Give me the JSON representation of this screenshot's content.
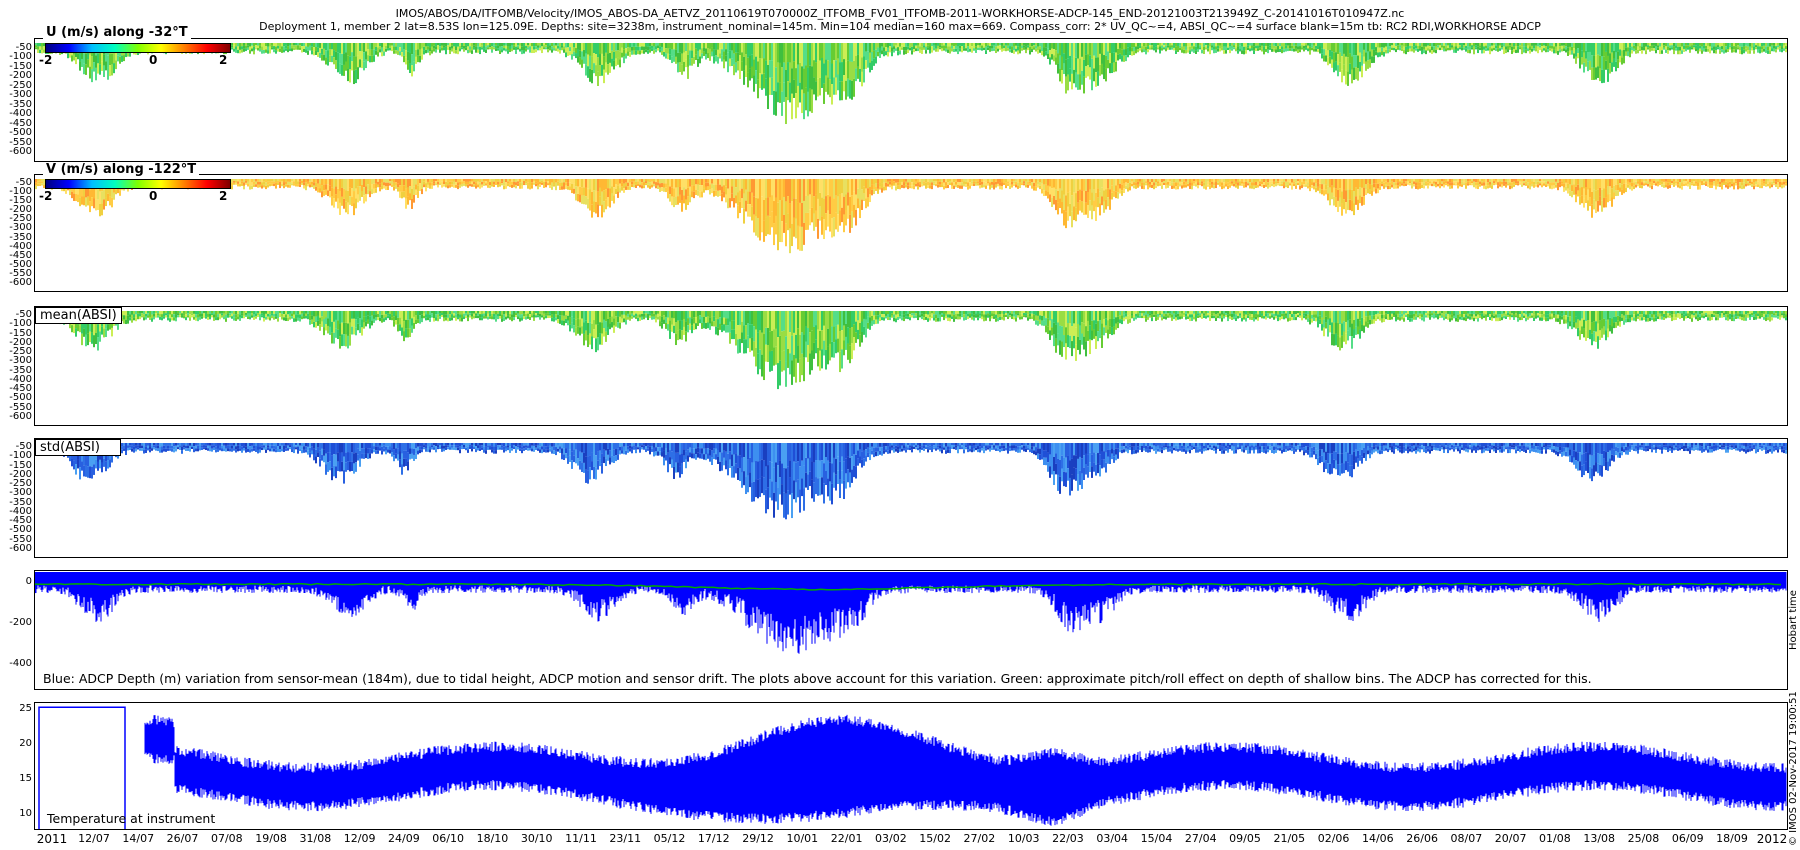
{
  "header": {
    "line1": "IMOS/ABOS/DA/ITFOMB/Velocity/IMOS_ABOS-DA_AETVZ_20110619T070000Z_ITFOMB_FV01_ITFOMB-2011-WORKHORSE-ADCP-145_END-20121003T213949Z_C-20141016T010947Z.nc",
    "line2": "Deployment 1, member 2 lat=8.53S lon=125.09E. Depths: site=3238m, instrument_nominal=145m. Min=104 median=160 max=669. Compass_corr: 2* UV_QC~=4, ABSI_QC~=4 surface blank=15m tb: RC2 RDI,WORKHORSE ADCP"
  },
  "colors": {
    "line_blue": "#0000ff",
    "line_green": "#00aa00",
    "frame": "#000000"
  },
  "chart_data": [
    {
      "type": "heatmap",
      "title": "U (m/s) along -32°T",
      "colorbar": {
        "ticks": [
          "-2",
          "0",
          "2"
        ],
        "range": [
          -2,
          2
        ]
      },
      "yticks": [
        "-50",
        "-100",
        "-150",
        "-200",
        "-250",
        "-300",
        "-350",
        "-400",
        "-450",
        "-500",
        "-550",
        "-600"
      ],
      "ylim": [
        -650,
        0
      ],
      "dominant_color": "green"
    },
    {
      "type": "heatmap",
      "title": "V (m/s) along -122°T",
      "colorbar": {
        "ticks": [
          "-2",
          "0",
          "2"
        ],
        "range": [
          -2,
          2
        ]
      },
      "yticks": [
        "-50",
        "-100",
        "-150",
        "-200",
        "-250",
        "-300",
        "-350",
        "-400",
        "-450",
        "-500",
        "-550",
        "-600"
      ],
      "ylim": [
        -650,
        0
      ],
      "dominant_color": "orange"
    },
    {
      "type": "heatmap",
      "title": "mean(ABSI)",
      "yticks": [
        "-50",
        "-100",
        "-150",
        "-200",
        "-250",
        "-300",
        "-350",
        "-400",
        "-450",
        "-500",
        "-550",
        "-600"
      ],
      "ylim": [
        -650,
        0
      ],
      "dominant_color": "green"
    },
    {
      "type": "heatmap",
      "title": "std(ABSI)",
      "yticks": [
        "-50",
        "-100",
        "-150",
        "-200",
        "-250",
        "-300",
        "-350",
        "-400",
        "-450",
        "-500",
        "-550",
        "-600"
      ],
      "ylim": [
        -650,
        0
      ],
      "dominant_color": "blue"
    },
    {
      "type": "line",
      "yticks": [
        "0",
        "-200",
        "-400"
      ],
      "ylim": [
        -520,
        60
      ],
      "series": [
        {
          "color": "blue"
        },
        {
          "color": "green"
        }
      ],
      "annotation": "Blue: ADCP Depth (m) variation from sensor-mean (184m), due to tidal height, ADCP motion and sensor drift. The plots above account for this variation. Green: approximate pitch/roll effect on depth of shallow bins. The ADCP has corrected for this."
    },
    {
      "type": "line",
      "yticks": [
        "25",
        "20",
        "15",
        "10"
      ],
      "ylim": [
        8,
        26
      ],
      "annotation": "Temperature at instrument"
    }
  ],
  "xaxis": {
    "year_start": "2011",
    "year_end": "2012",
    "ticks": [
      "12/07",
      "14/07",
      "26/07",
      "07/08",
      "19/08",
      "31/08",
      "12/09",
      "24/09",
      "06/10",
      "18/10",
      "30/10",
      "11/11",
      "23/11",
      "05/12",
      "17/12",
      "29/12",
      "10/01",
      "22/01",
      "03/02",
      "15/02",
      "27/02",
      "10/03",
      "22/03",
      "03/04",
      "15/04",
      "27/04",
      "09/05",
      "21/05",
      "02/06",
      "14/06",
      "26/06",
      "08/07",
      "20/07",
      "01/08",
      "13/08",
      "25/08",
      "06/09",
      "18/09"
    ]
  },
  "side_labels": {
    "timezone": "Hobart time",
    "credit": "© IMOS 02-Nov-2017 19:00:51"
  }
}
